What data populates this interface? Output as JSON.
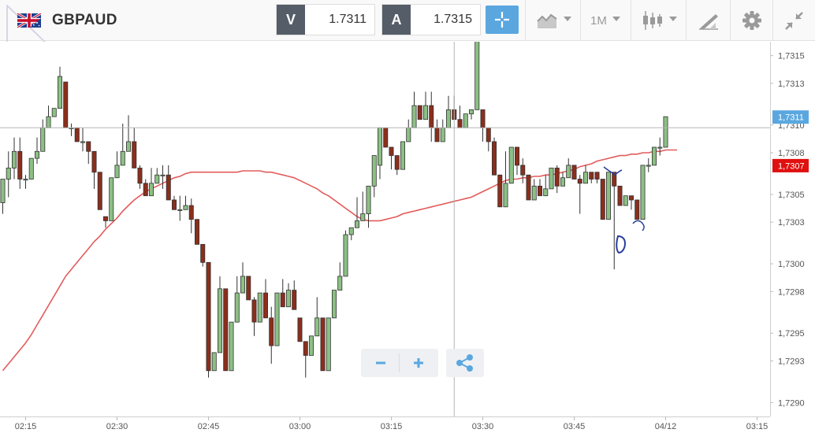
{
  "header": {
    "symbol": "GBPAUD",
    "bid_label": "V",
    "bid_value": "1.7311",
    "ask_label": "A",
    "ask_value": "1.7315",
    "timeframe": "1M"
  },
  "colors": {
    "accent": "#5aa7e0",
    "bull_candle": "#8cc084",
    "bear_candle": "#8b2e1c",
    "moving_average": "#e35b5b",
    "bid_tag": "#5aa7e0",
    "ask_tag": "#e01010"
  },
  "icons": [
    "flag-gb-au-icon",
    "crosshair-icon",
    "chart-type-icon",
    "candlestick-icon",
    "drawing-tools-icon",
    "gear-icon",
    "collapse-icon",
    "zoom-out-icon",
    "zoom-in-icon",
    "share-icon"
  ],
  "chart_data": {
    "type": "candlestick",
    "interval": "1M",
    "x_labels": [
      "02:15",
      "02:30",
      "02:45",
      "03:00",
      "03:15",
      "03:30",
      "03:45",
      "04/12",
      "03:15"
    ],
    "y_ticks": [
      "1,7315",
      "1,7313",
      "1,7310",
      "1,7308",
      "1,7305",
      "1,7303",
      "1,7300",
      "1,7298",
      "1,7295",
      "1,7293",
      "1,7290"
    ],
    "ylim": [
      1.7289,
      1.7316
    ],
    "price_tags": [
      {
        "label": "1,7311",
        "value": 1.73106,
        "color": "#5aa7e0"
      },
      {
        "label": "1,7307",
        "value": 1.73071,
        "color": "#e01010"
      }
    ],
    "crosshair": {
      "candle": 79,
      "price": 1.73098
    },
    "candles": [
      [
        1.73044,
        1.73061,
        1.73061,
        1.73036
      ],
      [
        1.73061,
        1.73069,
        1.73081,
        1.73048
      ],
      [
        1.73069,
        1.73081,
        1.73091,
        1.73061
      ],
      [
        1.73081,
        1.73061,
        1.73091,
        1.73054
      ],
      [
        1.73061,
        1.73061,
        1.73064,
        1.73054
      ],
      [
        1.73061,
        1.73076,
        1.73076,
        1.73061
      ],
      [
        1.73076,
        1.73081,
        1.73091,
        1.73072
      ],
      [
        1.73081,
        1.73098,
        1.73104,
        1.73081
      ],
      [
        1.73098,
        1.73106,
        1.73114,
        1.73098
      ],
      [
        1.73106,
        1.73112,
        1.73112,
        1.73106
      ],
      [
        1.73112,
        1.73135,
        1.73142,
        1.73112
      ],
      [
        1.73131,
        1.73098,
        1.73131,
        1.73098
      ],
      [
        1.73098,
        1.73098,
        1.73101,
        1.73092
      ],
      [
        1.73098,
        1.73088,
        1.73098,
        1.73088
      ],
      [
        1.73088,
        1.73088,
        1.73098,
        1.73081
      ],
      [
        1.73088,
        1.73081,
        1.73088,
        1.73072
      ],
      [
        1.73081,
        1.73066,
        1.73081,
        1.73054
      ],
      [
        1.73066,
        1.73039,
        1.73066,
        1.73039
      ],
      [
        1.73034,
        1.73031,
        1.73034,
        1.73026
      ],
      [
        1.73031,
        1.73062,
        1.73062,
        1.73031
      ],
      [
        1.73062,
        1.73071,
        1.73081,
        1.73062
      ],
      [
        1.73071,
        1.73081,
        1.73101,
        1.73071
      ],
      [
        1.73081,
        1.73088,
        1.73107,
        1.73081
      ],
      [
        1.73088,
        1.73069,
        1.73098,
        1.73069
      ],
      [
        1.73069,
        1.73058,
        1.73071,
        1.73054
      ],
      [
        1.73058,
        1.73049,
        1.73061,
        1.73049
      ],
      [
        1.73049,
        1.73058,
        1.73069,
        1.73049
      ],
      [
        1.73058,
        1.73064,
        1.73069,
        1.73058
      ],
      [
        1.73064,
        1.73064,
        1.73071,
        1.73054
      ],
      [
        1.73064,
        1.73046,
        1.73071,
        1.73046
      ],
      [
        1.73046,
        1.73039,
        1.73049,
        1.73039
      ],
      [
        1.73039,
        1.73039,
        1.73049,
        1.73031
      ],
      [
        1.73039,
        1.73042,
        1.73049,
        1.73039
      ],
      [
        1.73042,
        1.73032,
        1.73047,
        1.73022
      ],
      [
        1.73032,
        1.73014,
        1.73032,
        1.73014
      ],
      [
        1.73014,
        1.73001,
        1.73014,
        1.72998
      ],
      [
        1.73001,
        1.72923,
        1.73001,
        1.72918
      ],
      [
        1.72923,
        1.72936,
        1.72936,
        1.72923
      ],
      [
        1.72936,
        1.72982,
        1.72991,
        1.72936
      ],
      [
        1.72982,
        1.72923,
        1.72982,
        1.72923
      ],
      [
        1.72923,
        1.72958,
        1.72958,
        1.72923
      ],
      [
        1.72958,
        1.72979,
        1.72991,
        1.72958
      ],
      [
        1.72979,
        1.72991,
        1.73001,
        1.72979
      ],
      [
        1.72991,
        1.72974,
        1.72991,
        1.72974
      ],
      [
        1.72974,
        1.72958,
        1.72976,
        1.72948
      ],
      [
        1.72958,
        1.72979,
        1.72979,
        1.72958
      ],
      [
        1.72979,
        1.72961,
        1.72989,
        1.72961
      ],
      [
        1.72961,
        1.72941,
        1.72969,
        1.72928
      ],
      [
        1.72941,
        1.72979,
        1.72979,
        1.72941
      ],
      [
        1.72979,
        1.72969,
        1.72989,
        1.72969
      ],
      [
        1.72969,
        1.72981,
        1.72986,
        1.72969
      ],
      [
        1.72981,
        1.72967,
        1.72988,
        1.72967
      ],
      [
        1.72961,
        1.72944,
        1.72961,
        1.72944
      ],
      [
        1.72944,
        1.72934,
        1.72944,
        1.72918
      ],
      [
        1.72934,
        1.72948,
        1.72948,
        1.72934
      ],
      [
        1.72948,
        1.72961,
        1.72976,
        1.72948
      ],
      [
        1.72961,
        1.72923,
        1.72961,
        1.72923
      ],
      [
        1.72923,
        1.72961,
        1.72961,
        1.72923
      ],
      [
        1.72961,
        1.72981,
        1.72981,
        1.72961
      ],
      [
        1.72981,
        1.72991,
        1.73001,
        1.72981
      ],
      [
        1.72991,
        1.73021,
        1.73024,
        1.72991
      ],
      [
        1.73021,
        1.73026,
        1.73026,
        1.73017
      ],
      [
        1.73026,
        1.73031,
        1.73048,
        1.73026
      ],
      [
        1.73031,
        1.73036,
        1.73052,
        1.73031
      ],
      [
        1.73036,
        1.73056,
        1.73056,
        1.73026
      ],
      [
        1.73056,
        1.73078,
        1.73078,
        1.73048
      ],
      [
        1.73071,
        1.73098,
        1.73098,
        1.73061
      ],
      [
        1.73098,
        1.73084,
        1.73098,
        1.73084
      ],
      [
        1.73084,
        1.73078,
        1.73084,
        1.73068
      ],
      [
        1.73078,
        1.73068,
        1.73078,
        1.73064
      ],
      [
        1.73068,
        1.73088,
        1.73088,
        1.73068
      ],
      [
        1.73088,
        1.73098,
        1.73104,
        1.73088
      ],
      [
        1.73098,
        1.73114,
        1.73124,
        1.73098
      ],
      [
        1.73114,
        1.73104,
        1.73114,
        1.73104
      ],
      [
        1.73104,
        1.73114,
        1.73124,
        1.73104
      ],
      [
        1.73114,
        1.73098,
        1.73124,
        1.73088
      ],
      [
        1.73098,
        1.73088,
        1.73104,
        1.73088
      ],
      [
        1.73088,
        1.73098,
        1.73104,
        1.73088
      ],
      [
        1.73098,
        1.73111,
        1.73121,
        1.73098
      ],
      [
        1.73111,
        1.73104,
        1.73121,
        1.73104
      ],
      [
        1.73104,
        1.73098,
        1.73114,
        1.73098
      ],
      [
        1.73098,
        1.73108,
        1.73108,
        1.73098
      ],
      [
        1.73108,
        1.73111,
        1.73111,
        1.73104
      ],
      [
        1.73111,
        1.73161,
        1.73161,
        1.73111
      ],
      [
        1.73111,
        1.73098,
        1.73111,
        1.73088
      ],
      [
        1.73098,
        1.73088,
        1.73098,
        1.73081
      ],
      [
        1.73088,
        1.73064,
        1.73091,
        1.73064
      ],
      [
        1.73064,
        1.73041,
        1.73064,
        1.73041
      ],
      [
        1.73041,
        1.73058,
        1.73081,
        1.73041
      ],
      [
        1.73058,
        1.73084,
        1.73084,
        1.73058
      ],
      [
        1.73084,
        1.73071,
        1.73084,
        1.73064
      ],
      [
        1.73071,
        1.73064,
        1.73076,
        1.73058
      ],
      [
        1.73064,
        1.73046,
        1.73064,
        1.73046
      ],
      [
        1.73046,
        1.73056,
        1.73061,
        1.73046
      ],
      [
        1.73056,
        1.73049,
        1.73061,
        1.73049
      ],
      [
        1.73049,
        1.73054,
        1.73064,
        1.73049
      ],
      [
        1.73054,
        1.73069,
        1.73069,
        1.73054
      ],
      [
        1.73069,
        1.73056,
        1.73071,
        1.73051
      ],
      [
        1.73056,
        1.73062,
        1.73066,
        1.73056
      ],
      [
        1.73062,
        1.73071,
        1.73076,
        1.73062
      ],
      [
        1.73071,
        1.73061,
        1.73071,
        1.73061
      ],
      [
        1.73061,
        1.73058,
        1.73064,
        1.73036
      ],
      [
        1.73058,
        1.73066,
        1.73071,
        1.73058
      ],
      [
        1.73066,
        1.73061,
        1.73066,
        1.73058
      ],
      [
        1.73066,
        1.73061,
        1.73066,
        1.73058
      ],
      [
        1.73061,
        1.73032,
        1.73061,
        1.73032
      ],
      [
        1.73032,
        1.73066,
        1.73066,
        1.73032
      ],
      [
        1.73066,
        1.73056,
        1.73066,
        1.72996
      ],
      [
        1.73056,
        1.73042,
        1.73056,
        1.73042
      ],
      [
        1.73042,
        1.73049,
        1.73049,
        1.73042
      ],
      [
        1.73049,
        1.73046,
        1.73049,
        1.73039
      ],
      [
        1.73046,
        1.73032,
        1.73046,
        1.73032
      ],
      [
        1.73032,
        1.73071,
        1.73071,
        1.73032
      ],
      [
        1.73071,
        1.73071,
        1.73076,
        1.73066
      ],
      [
        1.73071,
        1.73084,
        1.73084,
        1.73071
      ],
      [
        1.73084,
        1.73084,
        1.73091,
        1.73078
      ],
      [
        1.73084,
        1.73106,
        1.73106,
        1.73084
      ]
    ],
    "moving_average": [
      1.72923,
      1.72928,
      1.72933,
      1.72938,
      1.72943,
      1.72949,
      1.72956,
      1.72963,
      1.7297,
      1.72977,
      1.72984,
      1.72991,
      1.72996,
      1.73001,
      1.73006,
      1.73011,
      1.73016,
      1.7302,
      1.73025,
      1.73029,
      1.73033,
      1.73038,
      1.73042,
      1.73046,
      1.73049,
      1.73052,
      1.73054,
      1.73056,
      1.73058,
      1.7306,
      1.73062,
      1.73063,
      1.73065,
      1.73066,
      1.73066,
      1.73066,
      1.73066,
      1.73066,
      1.73066,
      1.73066,
      1.73066,
      1.73066,
      1.73067,
      1.73067,
      1.73067,
      1.73067,
      1.73066,
      1.73066,
      1.73065,
      1.73064,
      1.73063,
      1.73062,
      1.7306,
      1.73058,
      1.73056,
      1.73054,
      1.73051,
      1.73049,
      1.73046,
      1.73043,
      1.7304,
      1.73037,
      1.73034,
      1.73032,
      1.73031,
      1.73031,
      1.73031,
      1.73032,
      1.73033,
      1.73034,
      1.73036,
      1.73037,
      1.73038,
      1.73039,
      1.7304,
      1.73041,
      1.73042,
      1.73043,
      1.73044,
      1.73045,
      1.73046,
      1.73047,
      1.73048,
      1.7305,
      1.73052,
      1.73054,
      1.73056,
      1.73058,
      1.7306,
      1.73061,
      1.73061,
      1.73062,
      1.73062,
      1.73063,
      1.73063,
      1.73064,
      1.73064,
      1.73065,
      1.73066,
      1.73067,
      1.73068,
      1.7307,
      1.73071,
      1.73072,
      1.73074,
      1.73075,
      1.73076,
      1.73077,
      1.73078,
      1.73078,
      1.73079,
      1.73079,
      1.7308,
      1.7308,
      1.73081,
      1.73081,
      1.73082,
      1.73082,
      1.73082
    ]
  }
}
